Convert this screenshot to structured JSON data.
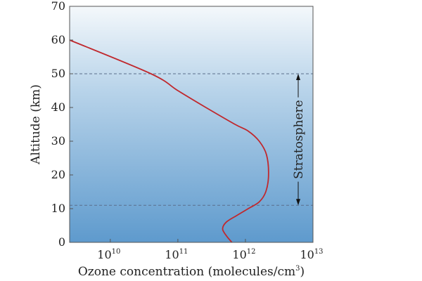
{
  "chart_data": {
    "type": "line",
    "title": "",
    "xlabel": "Ozone concentration (molecules/cm",
    "xlabel_superscript": "3",
    "xlabel_suffix": ")",
    "ylabel": "Altitude (km)",
    "x_scale": "log",
    "xlim": [
      2500000000,
      10000000000000
    ],
    "ylim": [
      0,
      70
    ],
    "x_ticks": [
      {
        "value": 10000000000,
        "base": "10",
        "exp": "10"
      },
      {
        "value": 100000000000,
        "base": "10",
        "exp": "11"
      },
      {
        "value": 1000000000000,
        "base": "10",
        "exp": "12"
      },
      {
        "value": 10000000000000,
        "base": "10",
        "exp": "13"
      }
    ],
    "y_ticks": [
      0,
      10,
      20,
      30,
      40,
      50,
      60,
      70
    ],
    "series": [
      {
        "color": "#c0282d",
        "x": [
          630000000000,
          520000000000,
          460000000000,
          520000000000,
          750000000000,
          1100000000000,
          1600000000000,
          2000000000000,
          2200000000000,
          2050000000000,
          1600000000000,
          1100000000000,
          700000000000,
          260000000000,
          100000000000,
          40000000000,
          2500000000
        ],
        "y": [
          0,
          2,
          4,
          6,
          8,
          10,
          12,
          15,
          20,
          26,
          30,
          33,
          35,
          40,
          45,
          50,
          60
        ]
      }
    ],
    "reference_lines": [
      {
        "y": 50,
        "style": "dashed",
        "color": "#5a6f8c"
      },
      {
        "y": 11,
        "style": "dashed",
        "color": "#5a6f8c"
      }
    ],
    "annotation": {
      "text": "Stratosphere",
      "from": 11,
      "to": 50
    },
    "grid": false,
    "background": "gradient light-blue (top) to medium-blue (bottom)"
  }
}
